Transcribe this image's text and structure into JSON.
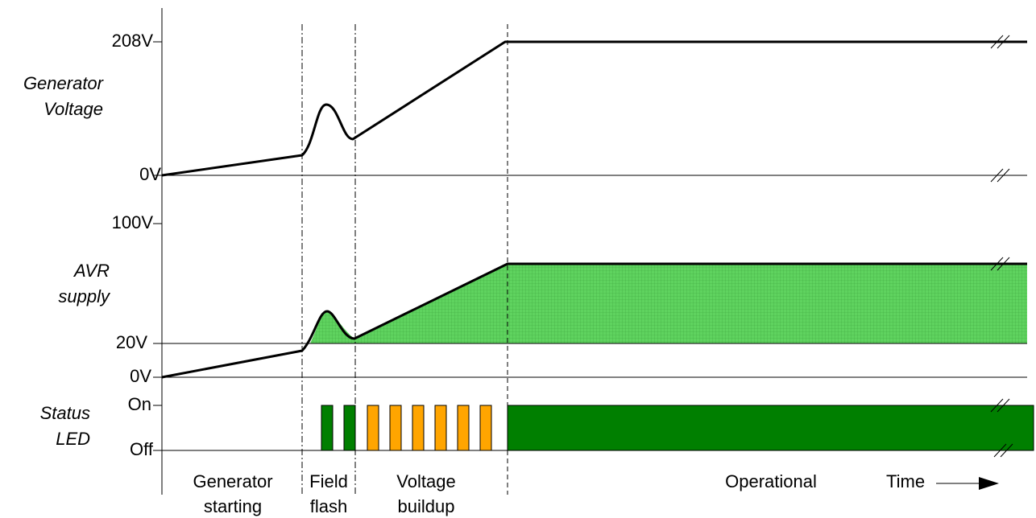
{
  "signals": [
    {
      "name": [
        "Generator",
        "Voltage"
      ],
      "levels": [
        "208V",
        "0V"
      ]
    },
    {
      "name": [
        "AVR",
        "supply"
      ],
      "levels": [
        "100V",
        "20V",
        "0V"
      ]
    },
    {
      "name": [
        "Status",
        "LED"
      ],
      "levels": [
        "On",
        "Off"
      ]
    }
  ],
  "phases": [
    [
      "Generator",
      "starting"
    ],
    [
      "Field",
      "flash"
    ],
    [
      "Voltage",
      "buildup"
    ],
    [
      "Operational"
    ]
  ],
  "time_label": "Time"
}
